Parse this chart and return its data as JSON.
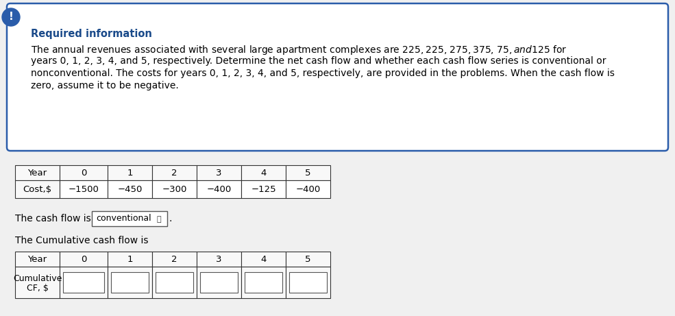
{
  "info_box": {
    "title": "Required information",
    "title_color": "#1a4a8a",
    "text_line1": "The annual revenues associated with several large apartment complexes are $225, $225, $275, $375, $75, and $125 for",
    "text_line2": "years 0, 1, 2, 3, 4, and 5, respectively. Determine the net cash flow and whether each cash flow series is conventional or",
    "text_line3": "nonconventional. The costs for years 0, 1, 2, 3, 4, and 5, respectively, are provided in the problems. When the cash flow is",
    "text_line4": "zero, assume it to be negative.",
    "border_color": "#2a5caa",
    "bg_color": "#ffffff",
    "icon_bg": "#2a5caa",
    "icon_text": "!",
    "icon_text_color": "#ffffff"
  },
  "cost_table": {
    "headers": [
      "Year",
      "0",
      "1",
      "2",
      "3",
      "4",
      "5"
    ],
    "row_label": "Cost,$",
    "values": [
      "−1500",
      "−450",
      "−300",
      "−400",
      "−125",
      "−400"
    ]
  },
  "cashflow_text": "The cash flow is",
  "dropdown_text": "conventional",
  "cumulative_text": "The Cumulative cash flow is",
  "cumulative_table": {
    "headers": [
      "Year",
      "0",
      "1",
      "2",
      "3",
      "4",
      "5"
    ],
    "row_label_line1": "Cumulative",
    "row_label_line2": "CF, $"
  },
  "bg_color": "#f0f0f0",
  "font_size_body": 10.0,
  "font_size_title": 10.5,
  "font_size_table": 9.5
}
